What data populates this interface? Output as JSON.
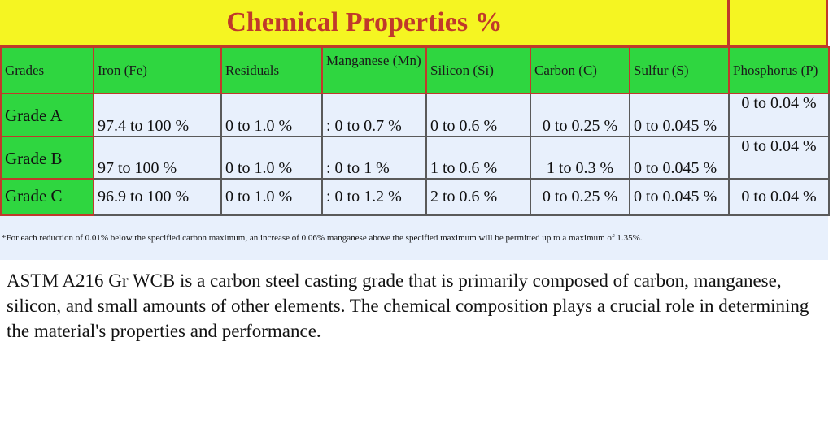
{
  "title": "Chemical Properties %",
  "table": {
    "headers": [
      "Grades",
      "Iron (Fe)",
      "Residuals",
      "Manganese (Mn)",
      "Silicon (Si)",
      "Carbon (C)",
      "Sulfur (S)",
      "Phosphorus (P)"
    ],
    "rows": [
      [
        "Grade A",
        "97.4 to 100 %",
        "0 to 1.0 %",
        ": 0 to 0.7 %",
        "0 to 0.6 %",
        "0 to 0.25 %",
        "0 to 0.045 %",
        "0 to 0.04 %"
      ],
      [
        "Grade B",
        "97 to 100 %",
        "0 to 1.0 %",
        ": 0 to 1 %",
        "1 to 0.6 %",
        "1 to 0.3 %",
        "0 to 0.045 %",
        "0 to 0.04 %"
      ],
      [
        "Grade C",
        "96.9 to 100 %",
        "0 to 1.0 %",
        ": 0 to 1.2 %",
        "2 to 0.6 %",
        "0 to 0.25 %",
        "0 to 0.045 %",
        "0 to 0.04 %"
      ]
    ]
  },
  "footnote": "*For each reduction of 0.01% below the specified carbon maximum, an increase of 0.06% manganese above the specified maximum will be permitted up to a maximum of 1.35%.",
  "description": "ASTM A216 Gr WCB is a carbon steel casting grade that is primarily composed of carbon, manganese, silicon, and small amounts of other elements. The chemical composition plays a crucial role in determining the material's properties and performance.",
  "colors": {
    "title_bar": "#f5f522",
    "title_text": "#c0392b",
    "header_green": "#2fd640",
    "cell_bg": "#e8f0fc",
    "border_red": "#c0392b"
  }
}
